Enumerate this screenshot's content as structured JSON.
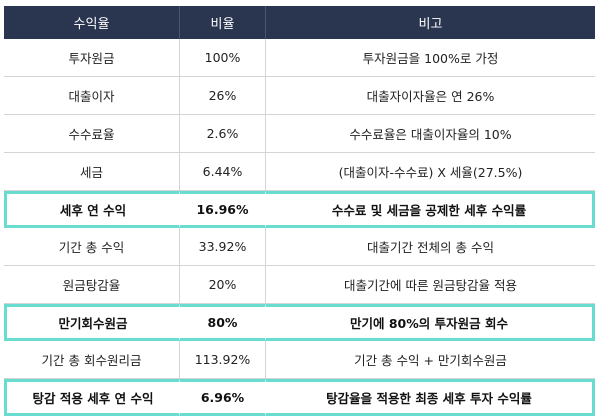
{
  "table": {
    "headers": [
      "수익율",
      "비율",
      "비고"
    ],
    "rows": [
      {
        "item": "투자원금",
        "ratio": "100%",
        "note": "투자원금을 100%로 가정",
        "highlight": false
      },
      {
        "item": "대출이자",
        "ratio": "26%",
        "note": "대출자이자율은 연 26%",
        "highlight": false
      },
      {
        "item": "수수료율",
        "ratio": "2.6%",
        "note": "수수료율은 대출이자율의 10%",
        "highlight": false
      },
      {
        "item": "세금",
        "ratio": "6.44%",
        "note": "(대출이자-수수료) X 세율(27.5%)",
        "highlight": false
      },
      {
        "item": "세후 연 수익",
        "ratio": "16.96%",
        "note": "수수료 및 세금을 공제한 세후 수익률",
        "highlight": true
      },
      {
        "item": "기간 총 수익",
        "ratio": "33.92%",
        "note": "대출기간 전체의 총 수익",
        "highlight": false
      },
      {
        "item": "원금탕감율",
        "ratio": "20%",
        "note": "대출기간에 따른 원금탕감율 적용",
        "highlight": false
      },
      {
        "item": "만기회수원금",
        "ratio": "80%",
        "note": "만기에 80%의 투자원금 회수",
        "highlight": true
      },
      {
        "item": "기간 총 회수원리금",
        "ratio": "113.92%",
        "note": "기간 총 수익 + 만기회수원금",
        "highlight": false
      },
      {
        "item": "탕감 적용 세후 연 수익",
        "ratio": "6.96%",
        "note": "탕감율을 적용한 최종 세후 투자 수익률",
        "highlight": true
      }
    ]
  },
  "colors": {
    "header_bg": "#2a3550",
    "highlight_border": "#67dccf"
  }
}
